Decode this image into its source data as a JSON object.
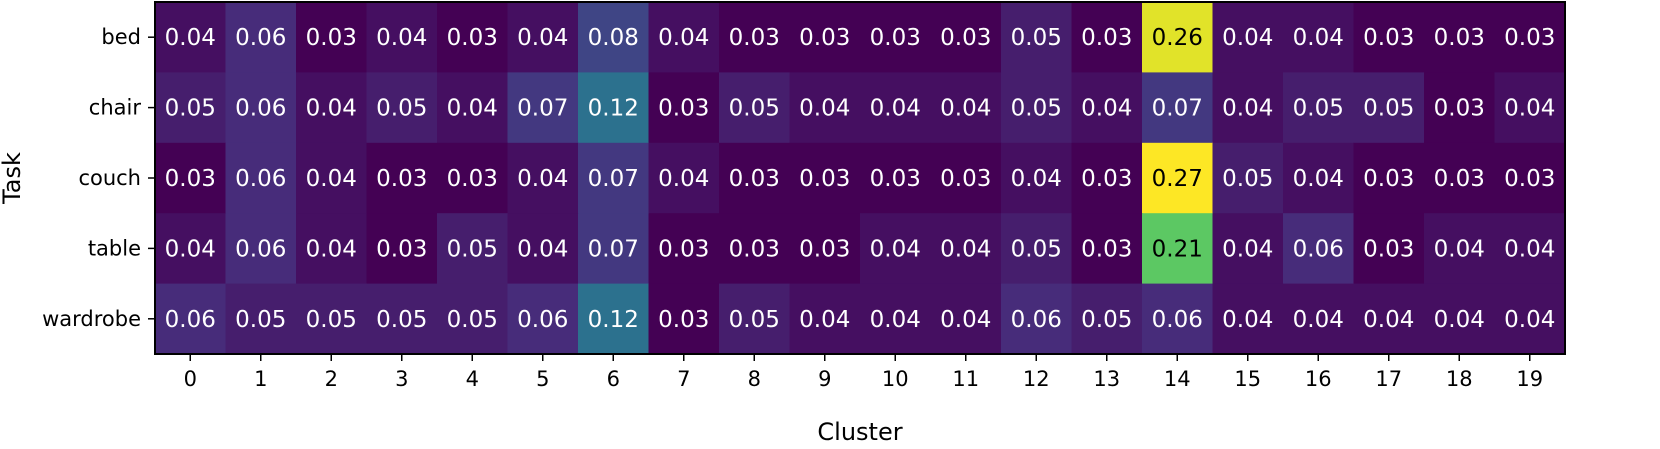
{
  "chart_data": {
    "type": "heatmap",
    "xlabel": "Cluster",
    "ylabel": "Task",
    "x_categories": [
      "0",
      "1",
      "2",
      "3",
      "4",
      "5",
      "6",
      "7",
      "8",
      "9",
      "10",
      "11",
      "12",
      "13",
      "14",
      "15",
      "16",
      "17",
      "18",
      "19"
    ],
    "y_categories": [
      "bed",
      "chair",
      "couch",
      "table",
      "wardrobe"
    ],
    "values": [
      [
        0.04,
        0.06,
        0.03,
        0.04,
        0.03,
        0.04,
        0.08,
        0.04,
        0.03,
        0.03,
        0.03,
        0.03,
        0.05,
        0.03,
        0.26,
        0.04,
        0.04,
        0.03,
        0.03,
        0.03
      ],
      [
        0.05,
        0.06,
        0.04,
        0.05,
        0.04,
        0.07,
        0.12,
        0.03,
        0.05,
        0.04,
        0.04,
        0.04,
        0.05,
        0.04,
        0.07,
        0.04,
        0.05,
        0.05,
        0.03,
        0.04
      ],
      [
        0.03,
        0.06,
        0.04,
        0.03,
        0.03,
        0.04,
        0.07,
        0.04,
        0.03,
        0.03,
        0.03,
        0.03,
        0.04,
        0.03,
        0.27,
        0.05,
        0.04,
        0.03,
        0.03,
        0.03
      ],
      [
        0.04,
        0.06,
        0.04,
        0.03,
        0.05,
        0.04,
        0.07,
        0.03,
        0.03,
        0.03,
        0.04,
        0.04,
        0.05,
        0.03,
        0.21,
        0.04,
        0.06,
        0.03,
        0.04,
        0.04
      ],
      [
        0.06,
        0.05,
        0.05,
        0.05,
        0.05,
        0.06,
        0.12,
        0.03,
        0.05,
        0.04,
        0.04,
        0.04,
        0.06,
        0.05,
        0.06,
        0.04,
        0.04,
        0.04,
        0.04,
        0.04
      ]
    ],
    "colormap": "viridis",
    "value_format": "0.00"
  }
}
